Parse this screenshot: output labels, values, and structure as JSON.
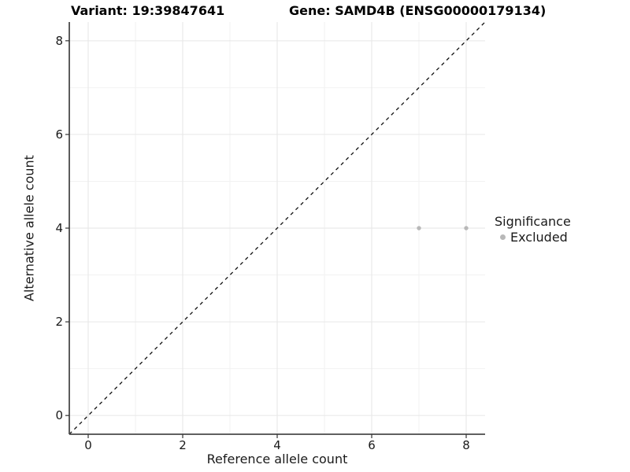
{
  "chart_data": {
    "type": "scatter",
    "title_variant": "Variant: 19:39847641",
    "title_gene": "Gene: SAMD4B (ENSG00000179134)",
    "xlabel": "Reference allele count",
    "ylabel": "Alternative allele count",
    "xlim": [
      -0.4,
      8.4
    ],
    "ylim": [
      -0.4,
      8.4
    ],
    "x_ticks": [
      0,
      2,
      4,
      6,
      8
    ],
    "y_ticks": [
      0,
      2,
      4,
      6,
      8
    ],
    "x_minor_gridlines": [
      1,
      3,
      5,
      7
    ],
    "y_minor_gridlines": [
      1,
      3,
      5,
      7
    ],
    "grid": "major and minor, light grey on white",
    "identity_line": {
      "slope": 1,
      "intercept": 0,
      "style": "dashed",
      "color": "#111111"
    },
    "series": [
      {
        "name": "Excluded",
        "color": "#b8b8b8",
        "points": [
          {
            "x": 7,
            "y": 4
          },
          {
            "x": 8,
            "y": 4
          }
        ]
      }
    ],
    "legend": {
      "title": "Significance",
      "position": "right",
      "entries": [
        {
          "label": "Excluded",
          "color": "#b8b8b8"
        }
      ]
    },
    "colors": {
      "background": "#ffffff",
      "grid_major": "#e6e6e6",
      "grid_minor": "#f2f2f2",
      "axis_line": "#4a4a4a",
      "tick": "#333333",
      "tick_label": "#1a1a1a"
    }
  }
}
